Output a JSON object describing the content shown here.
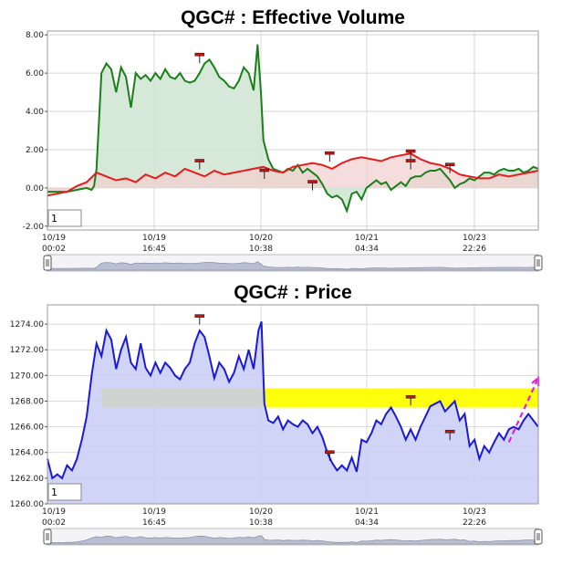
{
  "colors": {
    "volume_green": "#1a7f1a",
    "volume_green_fill": "#cfe5d2",
    "volume_red": "#e61c1c",
    "volume_red_fill": "#f2cfcf",
    "price_blue": "#1a1ad6",
    "price_fill": "#c8ccf4",
    "zone_yellow": "#ffff00",
    "arrow_magenta": "#e020e0",
    "marker_red": "#cc1111"
  },
  "chart_data": [
    {
      "type": "line",
      "title": "QGC# : Effective Volume",
      "ylim": [
        -2.2,
        8.2
      ],
      "yticks": [
        "8.00",
        "6.00",
        "4.00",
        "2.00",
        "0.00",
        "-2.00"
      ],
      "xticks": [
        {
          "date": "10/19",
          "time": "00:02"
        },
        {
          "date": "10/19",
          "time": "16:45"
        },
        {
          "date": "10/20",
          "time": "10:38"
        },
        {
          "date": "10/21",
          "time": "04:34"
        },
        {
          "date": "10/23",
          "time": "22:26"
        }
      ],
      "x_domain": [
        0,
        100
      ],
      "input_value": "1",
      "series": [
        {
          "color": "green",
          "points": [
            [
              0,
              -0.2
            ],
            [
              4,
              -0.2
            ],
            [
              8,
              0.0
            ],
            [
              9,
              -0.1
            ],
            [
              9.5,
              0.1
            ],
            [
              10,
              1.0
            ],
            [
              11,
              6.0
            ],
            [
              12,
              6.5
            ],
            [
              13,
              6.2
            ],
            [
              14,
              5.0
            ],
            [
              15,
              6.3
            ],
            [
              16,
              5.8
            ],
            [
              17,
              4.2
            ],
            [
              18,
              6.0
            ],
            [
              19,
              5.7
            ],
            [
              20,
              5.9
            ],
            [
              21,
              5.6
            ],
            [
              22,
              6.0
            ],
            [
              23,
              5.7
            ],
            [
              24,
              6.2
            ],
            [
              25,
              5.8
            ],
            [
              26,
              5.7
            ],
            [
              27,
              6.0
            ],
            [
              28,
              5.6
            ],
            [
              29,
              5.5
            ],
            [
              30,
              5.6
            ],
            [
              31,
              6.0
            ],
            [
              32,
              6.5
            ],
            [
              33,
              6.7
            ],
            [
              34,
              6.3
            ],
            [
              35,
              5.8
            ],
            [
              36,
              5.6
            ],
            [
              37,
              5.3
            ],
            [
              38,
              5.2
            ],
            [
              39,
              5.6
            ],
            [
              40,
              6.3
            ],
            [
              41,
              6.0
            ],
            [
              42,
              5.1
            ],
            [
              42.8,
              7.5
            ],
            [
              43.5,
              5.0
            ],
            [
              44,
              2.5
            ],
            [
              45,
              1.5
            ],
            [
              46,
              1.0
            ],
            [
              47,
              0.9
            ],
            [
              48,
              0.8
            ],
            [
              49,
              1.0
            ],
            [
              50,
              0.9
            ],
            [
              51,
              1.2
            ],
            [
              52,
              0.8
            ],
            [
              53,
              1.0
            ],
            [
              54,
              0.8
            ],
            [
              55,
              0.6
            ],
            [
              56,
              0.2
            ],
            [
              57,
              -0.3
            ],
            [
              58,
              -0.5
            ],
            [
              59,
              -0.4
            ],
            [
              60,
              -0.6
            ],
            [
              61,
              -1.2
            ],
            [
              62,
              -0.3
            ],
            [
              63,
              -0.2
            ],
            [
              64,
              -0.6
            ],
            [
              65,
              0.0
            ],
            [
              66,
              0.2
            ],
            [
              67,
              0.4
            ],
            [
              68,
              0.2
            ],
            [
              69,
              0.3
            ],
            [
              70,
              -0.1
            ],
            [
              71,
              0.1
            ],
            [
              72,
              0.3
            ],
            [
              73,
              0.1
            ],
            [
              74,
              0.5
            ],
            [
              75,
              0.6
            ],
            [
              76,
              0.6
            ],
            [
              77,
              0.8
            ],
            [
              78,
              0.9
            ],
            [
              79,
              0.9
            ],
            [
              80,
              1.0
            ],
            [
              81,
              0.7
            ],
            [
              82,
              0.4
            ],
            [
              83,
              0.0
            ],
            [
              84,
              0.2
            ],
            [
              85,
              0.3
            ],
            [
              86,
              0.5
            ],
            [
              87,
              0.4
            ],
            [
              88,
              0.6
            ],
            [
              89,
              0.8
            ],
            [
              90,
              0.8
            ],
            [
              91,
              0.7
            ],
            [
              92,
              0.9
            ],
            [
              93,
              1.0
            ],
            [
              94,
              0.9
            ],
            [
              95,
              0.9
            ],
            [
              96,
              1.0
            ],
            [
              97,
              0.8
            ],
            [
              98,
              0.9
            ],
            [
              99,
              1.1
            ],
            [
              100,
              1.0
            ]
          ]
        },
        {
          "color": "red",
          "points": [
            [
              0,
              -0.4
            ],
            [
              2,
              -0.3
            ],
            [
              4,
              -0.2
            ],
            [
              6,
              0.1
            ],
            [
              8,
              0.3
            ],
            [
              10,
              0.8
            ],
            [
              12,
              0.6
            ],
            [
              14,
              0.4
            ],
            [
              16,
              0.5
            ],
            [
              18,
              0.3
            ],
            [
              20,
              0.7
            ],
            [
              22,
              0.5
            ],
            [
              24,
              0.8
            ],
            [
              26,
              0.6
            ],
            [
              28,
              1.0
            ],
            [
              30,
              0.8
            ],
            [
              32,
              0.6
            ],
            [
              34,
              0.9
            ],
            [
              36,
              0.7
            ],
            [
              38,
              0.8
            ],
            [
              40,
              0.9
            ],
            [
              42,
              1.0
            ],
            [
              44,
              1.1
            ],
            [
              46,
              0.9
            ],
            [
              48,
              0.8
            ],
            [
              50,
              1.1
            ],
            [
              52,
              1.2
            ],
            [
              54,
              1.3
            ],
            [
              56,
              1.2
            ],
            [
              58,
              1.0
            ],
            [
              60,
              1.3
            ],
            [
              62,
              1.5
            ],
            [
              64,
              1.6
            ],
            [
              66,
              1.5
            ],
            [
              68,
              1.4
            ],
            [
              70,
              1.6
            ],
            [
              72,
              1.7
            ],
            [
              74,
              1.8
            ],
            [
              76,
              1.5
            ],
            [
              78,
              1.3
            ],
            [
              80,
              1.2
            ],
            [
              82,
              1.0
            ],
            [
              84,
              0.7
            ],
            [
              86,
              0.6
            ],
            [
              88,
              0.5
            ],
            [
              90,
              0.5
            ],
            [
              92,
              0.7
            ],
            [
              94,
              0.6
            ],
            [
              96,
              0.7
            ],
            [
              98,
              0.8
            ],
            [
              100,
              0.9
            ]
          ]
        }
      ],
      "markers": [
        [
          31,
          6.95
        ],
        [
          31,
          1.4
        ],
        [
          44.2,
          0.9
        ],
        [
          54,
          0.3
        ],
        [
          57.5,
          1.8
        ],
        [
          74,
          1.9
        ],
        [
          74,
          1.4
        ],
        [
          82,
          1.2
        ]
      ]
    },
    {
      "type": "area",
      "title": "QGC# : Price",
      "ylim": [
        1260,
        1275.5
      ],
      "yticks": [
        "1274.00",
        "1272.00",
        "1270.00",
        "1268.00",
        "1266.00",
        "1264.00",
        "1262.00",
        "1260.00"
      ],
      "xticks": [
        {
          "date": "10/19",
          "time": "00:02"
        },
        {
          "date": "10/19",
          "time": "16:45"
        },
        {
          "date": "10/20",
          "time": "10:38"
        },
        {
          "date": "10/21",
          "time": "04:34"
        },
        {
          "date": "10/23",
          "time": "22:26"
        }
      ],
      "x_domain": [
        0,
        100
      ],
      "input_value": "1",
      "zones": [
        {
          "x": [
            11,
            44
          ],
          "y": [
            1267.5,
            1269.0
          ]
        },
        {
          "x": [
            44,
            100
          ],
          "y": [
            1267.5,
            1269.0
          ]
        }
      ],
      "series": [
        {
          "color": "blue",
          "points": [
            [
              0,
              1263.5
            ],
            [
              1,
              1262.0
            ],
            [
              2,
              1262.3
            ],
            [
              3,
              1262.0
            ],
            [
              4,
              1263.0
            ],
            [
              5,
              1262.6
            ],
            [
              6,
              1263.5
            ],
            [
              7,
              1265.0
            ],
            [
              8,
              1266.8
            ],
            [
              9,
              1270.0
            ],
            [
              10,
              1272.5
            ],
            [
              11,
              1271.5
            ],
            [
              12,
              1273.5
            ],
            [
              13,
              1272.8
            ],
            [
              14,
              1270.5
            ],
            [
              15,
              1272.0
            ],
            [
              16,
              1273.0
            ],
            [
              17,
              1271.0
            ],
            [
              18,
              1270.5
            ],
            [
              19,
              1272.5
            ],
            [
              20,
              1270.6
            ],
            [
              21,
              1270.0
            ],
            [
              22,
              1271.0
            ],
            [
              23,
              1270.2
            ],
            [
              24,
              1271.0
            ],
            [
              25,
              1270.6
            ],
            [
              26,
              1270.0
            ],
            [
              27,
              1269.7
            ],
            [
              28,
              1270.5
            ],
            [
              29,
              1271.0
            ],
            [
              30,
              1272.5
            ],
            [
              31,
              1273.5
            ],
            [
              32,
              1273.0
            ],
            [
              33,
              1271.5
            ],
            [
              34,
              1269.8
            ],
            [
              35,
              1271.0
            ],
            [
              36,
              1270.5
            ],
            [
              37,
              1269.5
            ],
            [
              38,
              1270.2
            ],
            [
              39,
              1271.5
            ],
            [
              40,
              1270.5
            ],
            [
              41,
              1272.0
            ],
            [
              42,
              1270.5
            ],
            [
              43,
              1273.5
            ],
            [
              43.6,
              1274.2
            ],
            [
              44.2,
              1267.8
            ],
            [
              45,
              1266.5
            ],
            [
              46,
              1266.3
            ],
            [
              47,
              1266.8
            ],
            [
              48,
              1265.8
            ],
            [
              49,
              1266.5
            ],
            [
              50,
              1266.2
            ],
            [
              51,
              1266.0
            ],
            [
              52,
              1266.5
            ],
            [
              53,
              1266.2
            ],
            [
              54,
              1265.5
            ],
            [
              55,
              1266.0
            ],
            [
              56,
              1265.2
            ],
            [
              57,
              1264.0
            ],
            [
              58,
              1263.2
            ],
            [
              59,
              1262.6
            ],
            [
              60,
              1263.0
            ],
            [
              61,
              1262.6
            ],
            [
              62,
              1263.6
            ],
            [
              63,
              1262.5
            ],
            [
              64,
              1265.0
            ],
            [
              65,
              1264.8
            ],
            [
              66,
              1265.5
            ],
            [
              67,
              1266.5
            ],
            [
              68,
              1266.2
            ],
            [
              69,
              1267.0
            ],
            [
              70,
              1267.5
            ],
            [
              71,
              1266.8
            ],
            [
              72,
              1266.0
            ],
            [
              73,
              1265.0
            ],
            [
              74,
              1265.8
            ],
            [
              75,
              1265.0
            ],
            [
              76,
              1266.0
            ],
            [
              77,
              1266.8
            ],
            [
              78,
              1267.6
            ],
            [
              79,
              1267.8
            ],
            [
              80,
              1268.0
            ],
            [
              81,
              1267.2
            ],
            [
              82,
              1267.6
            ],
            [
              83,
              1268.0
            ],
            [
              84,
              1266.5
            ],
            [
              85,
              1267.0
            ],
            [
              86,
              1264.5
            ],
            [
              87,
              1265.0
            ],
            [
              88,
              1263.5
            ],
            [
              89,
              1264.5
            ],
            [
              90,
              1264.0
            ],
            [
              91,
              1264.8
            ],
            [
              92,
              1265.5
            ],
            [
              93,
              1265.0
            ],
            [
              94,
              1265.8
            ],
            [
              95,
              1266.0
            ],
            [
              96,
              1265.8
            ],
            [
              97,
              1266.5
            ],
            [
              98,
              1267.0
            ],
            [
              99,
              1266.5
            ],
            [
              100,
              1266.0
            ]
          ]
        }
      ],
      "markers": [
        [
          31,
          1274.6
        ],
        [
          57.5,
          1264.0
        ],
        [
          74,
          1268.3
        ],
        [
          82,
          1265.6
        ]
      ],
      "trend_arrow": {
        "from": [
          94,
          1264.8
        ],
        "to": [
          100,
          1269.8
        ]
      }
    }
  ]
}
